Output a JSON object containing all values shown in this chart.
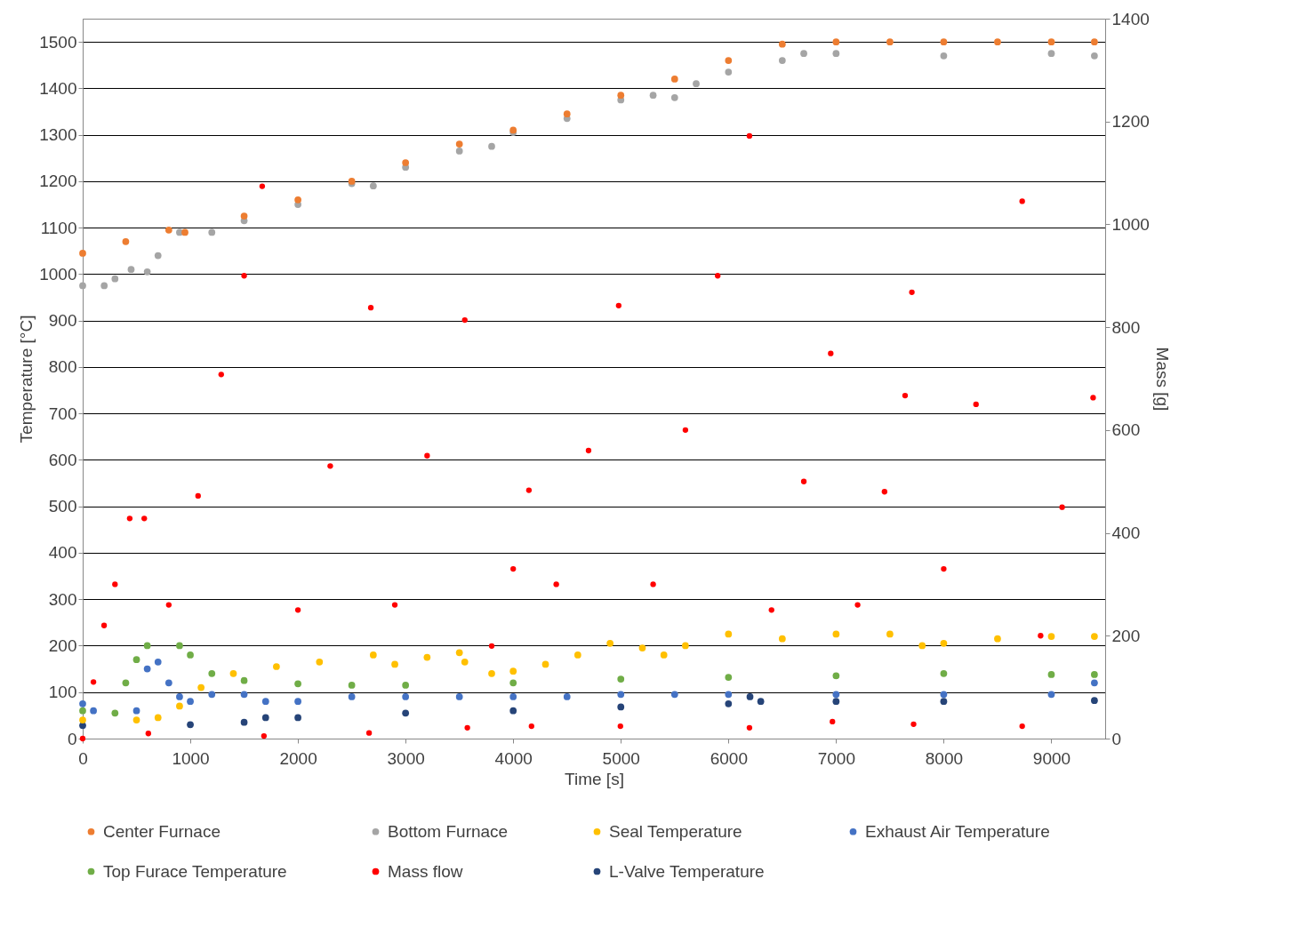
{
  "chart_data": {
    "type": "scatter",
    "xlabel": "Time [s]",
    "ylabel": "Temperature [°C]",
    "y2label": "Mass [g]",
    "xlim": [
      0,
      9500
    ],
    "xticks": [
      0,
      1000,
      2000,
      3000,
      4000,
      5000,
      6000,
      7000,
      8000,
      9000
    ],
    "ylim": [
      0,
      1550
    ],
    "yticks": [
      0,
      100,
      200,
      300,
      400,
      500,
      600,
      700,
      800,
      900,
      1000,
      1100,
      1200,
      1300,
      1400,
      1500
    ],
    "y2lim": [
      0,
      1400
    ],
    "y2ticks": [
      0,
      200,
      400,
      600,
      800,
      1000,
      1200,
      1400
    ],
    "grid": "y",
    "legend": "bottom",
    "marker": "circle",
    "series": [
      {
        "name": "Center Furnace",
        "color": "#ed7d31",
        "x": [
          0,
          400,
          800,
          950,
          1500,
          2000,
          2500,
          3000,
          3500,
          4000,
          4500,
          5000,
          5500,
          6000,
          6500,
          7000,
          7500,
          8000,
          8500,
          9000,
          9400
        ],
        "values": [
          1045,
          1070,
          1095,
          1090,
          1125,
          1160,
          1200,
          1240,
          1280,
          1310,
          1345,
          1385,
          1420,
          1460,
          1495,
          1500,
          1500,
          1500,
          1500,
          1500,
          1500
        ]
      },
      {
        "name": "Bottom Furnace",
        "color": "#a5a5a5",
        "x": [
          0,
          200,
          300,
          450,
          600,
          700,
          900,
          1200,
          1500,
          2000,
          2500,
          2700,
          3000,
          3500,
          3800,
          4000,
          4500,
          5000,
          5300,
          5500,
          5700,
          6000,
          6500,
          6700,
          7000,
          8000,
          9000,
          9400
        ],
        "values": [
          975,
          975,
          990,
          1010,
          1005,
          1040,
          1090,
          1090,
          1115,
          1150,
          1195,
          1190,
          1230,
          1265,
          1275,
          1305,
          1335,
          1375,
          1385,
          1380,
          1410,
          1435,
          1460,
          1475,
          1475,
          1470,
          1475,
          1470
        ]
      },
      {
        "name": "Seal Temperature",
        "color": "#ffc000",
        "x": [
          0,
          500,
          700,
          900,
          1100,
          1400,
          1800,
          2200,
          2700,
          2900,
          3200,
          3500,
          3550,
          3800,
          4000,
          4300,
          4600,
          4900,
          5200,
          5400,
          5600,
          6000,
          6500,
          7000,
          7500,
          7800,
          8000,
          8500,
          9000,
          9400
        ],
        "values": [
          40,
          40,
          45,
          70,
          110,
          140,
          155,
          165,
          180,
          160,
          175,
          185,
          165,
          140,
          145,
          160,
          180,
          205,
          195,
          180,
          200,
          225,
          215,
          225,
          225,
          200,
          205,
          215,
          220,
          220
        ]
      },
      {
        "name": "Exhaust Air Temperature",
        "color": "#4472c4",
        "x": [
          0,
          100,
          500,
          600,
          700,
          800,
          900,
          1000,
          1200,
          1500,
          1700,
          2000,
          2500,
          3000,
          3500,
          4000,
          4500,
          5000,
          5500,
          6000,
          7000,
          8000,
          9000,
          9400
        ],
        "values": [
          75,
          60,
          60,
          150,
          165,
          120,
          90,
          80,
          95,
          95,
          80,
          80,
          90,
          90,
          90,
          90,
          90,
          95,
          95,
          95,
          95,
          95,
          95,
          120
        ]
      },
      {
        "name": "Top Furace Temperature",
        "color": "#70ad47",
        "x": [
          0,
          300,
          400,
          500,
          600,
          900,
          1000,
          1200,
          1500,
          2000,
          2500,
          3000,
          4000,
          5000,
          6000,
          7000,
          8000,
          9000,
          9400
        ],
        "values": [
          60,
          55,
          120,
          170,
          200,
          200,
          180,
          140,
          125,
          118,
          115,
          115,
          120,
          128,
          132,
          135,
          140,
          138,
          138
        ]
      },
      {
        "name": "Mass flow",
        "color": "#ff0000",
        "axis": "y2",
        "x": [
          0,
          100,
          199,
          300,
          437,
          572,
          610,
          800,
          1072,
          1287,
          1500,
          1668,
          1684,
          2000,
          2300,
          2677,
          2661,
          2900,
          3200,
          3550,
          3574,
          3800,
          4000,
          4146,
          4170,
          4400,
          4700,
          4980,
          4996,
          5300,
          5600,
          5900,
          6195,
          6195,
          6400,
          6700,
          6950,
          6966,
          7200,
          7450,
          7641,
          7704,
          7720,
          8000,
          8300,
          8729,
          8729,
          8900,
          9100,
          9388
        ],
        "values": [
          0,
          110,
          220,
          300,
          428,
          428,
          10,
          260,
          472,
          708,
          900,
          1074,
          5,
          250,
          530,
          838,
          11,
          260,
          550,
          814,
          21,
          180,
          330,
          483,
          24,
          300,
          560,
          842,
          24,
          300,
          600,
          900,
          1172,
          21,
          250,
          500,
          749,
          33,
          260,
          480,
          667,
          868,
          28,
          330,
          650,
          1045,
          24,
          200,
          450,
          663
        ]
      },
      {
        "name": "L-Valve Temperature",
        "color": "#264478",
        "x": [
          0,
          1000,
          1500,
          1700,
          2000,
          3000,
          4000,
          5000,
          6000,
          6200,
          6300,
          7000,
          8000,
          9400
        ],
        "values": [
          28,
          30,
          35,
          45,
          45,
          55,
          60,
          68,
          75,
          90,
          80,
          80,
          80,
          82
        ]
      }
    ]
  }
}
